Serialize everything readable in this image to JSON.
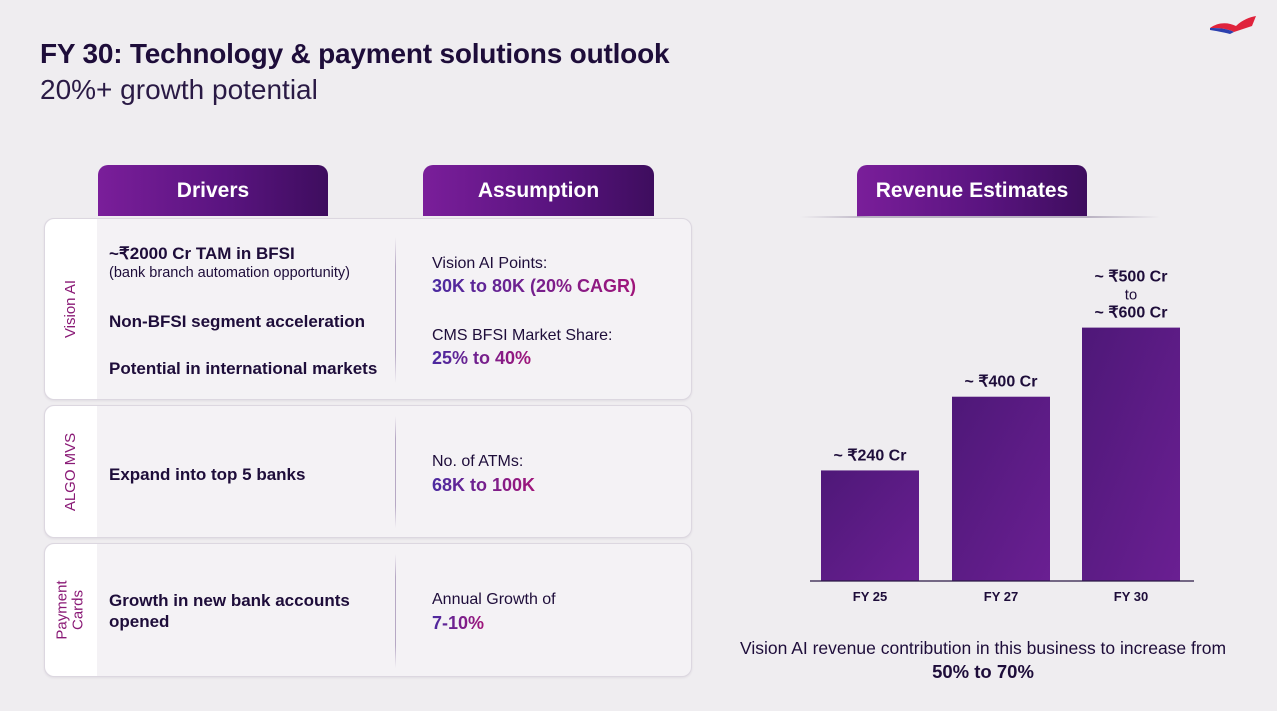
{
  "header": {
    "title": "FY 30: Technology & payment solutions outlook",
    "subtitle": "20%+ growth potential"
  },
  "columns": {
    "drivers": "Drivers",
    "assumption": "Assumption",
    "revenue": "Revenue Estimates"
  },
  "sections": {
    "vision_ai": {
      "label": "Vision AI",
      "driver1": "~₹2000 Cr TAM in BFSI",
      "driver1_sub": "(bank branch automation opportunity)",
      "driver2": "Non-BFSI segment acceleration",
      "driver3": "Potential in international markets",
      "assumption1_label": "Vision AI Points:",
      "assumption1_value": "30K to 80K (20% CAGR)",
      "assumption2_label": "CMS BFSI Market Share:",
      "assumption2_value": "25% to 40%"
    },
    "algo_mvs": {
      "label": "ALGO MVS",
      "driver1": "Expand into top 5 banks",
      "assumption1_label": "No. of ATMs:",
      "assumption1_value": "68K to 100K"
    },
    "payment_cards": {
      "label_line1": "Payment",
      "label_line2": "Cards",
      "driver1_line1": "Growth in new bank accounts",
      "driver1_line2": "opened",
      "assumption1_label": "Annual Growth of",
      "assumption1_value": "7-10%"
    }
  },
  "chart_data": {
    "type": "bar",
    "categories": [
      "FY 25",
      "FY 27",
      "FY 30"
    ],
    "values": [
      240,
      400,
      550
    ],
    "data_labels": [
      [
        "~ ₹240 Cr"
      ],
      [
        "~ ₹400 Cr"
      ],
      [
        "~ ₹500 Cr",
        "to",
        "~ ₹600 Cr"
      ]
    ],
    "unit": "₹ Cr",
    "ylim": [
      0,
      560
    ],
    "grid": false,
    "bar_color": "#4a1570"
  },
  "footnote": {
    "text": "Vision AI revenue contribution in this business to increase from",
    "highlight": "50% to 70%"
  },
  "colors": {
    "accent": "#6a1a90",
    "label": "#8a1a76",
    "text": "#1e0d3a"
  }
}
